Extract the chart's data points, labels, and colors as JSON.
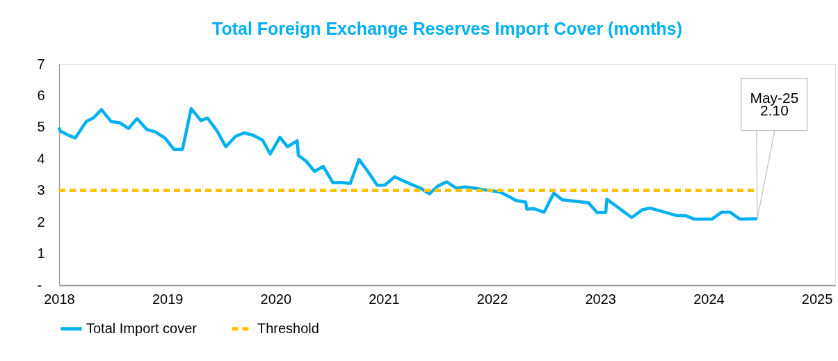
{
  "chart_data": {
    "type": "line",
    "title": "Total Foreign Exchange Reserves Import Cover (months)",
    "xlim": [
      2018,
      2025.17
    ],
    "xticks": [
      2018,
      2019,
      2020,
      2021,
      2022,
      2023,
      2024,
      2025
    ],
    "ylim": [
      0,
      7
    ],
    "yticks": [
      {
        "value": 0,
        "label": "-"
      },
      1,
      2,
      3,
      4,
      5,
      6,
      7
    ],
    "grid": false,
    "legend": "bottom",
    "marker": "none",
    "series": [
      {
        "name": "Total Import cover",
        "color": "#00b0f0",
        "line_style": "solid",
        "x": [
          2018.0,
          2018.01,
          2018.09,
          2018.15,
          2018.25,
          2018.32,
          2018.39,
          2018.48,
          2018.56,
          2018.64,
          2018.72,
          2018.81,
          2018.89,
          2018.98,
          2019.06,
          2019.14,
          2019.22,
          2019.31,
          2019.37,
          2019.46,
          2019.54,
          2019.63,
          2019.71,
          2019.79,
          2019.88,
          2019.95,
          2020.04,
          2020.11,
          2020.2,
          2020.21,
          2020.28,
          2020.36,
          2020.44,
          2020.53,
          2020.6,
          2020.69,
          2020.77,
          2020.85,
          2020.94,
          2021.01,
          2021.1,
          2021.18,
          2021.27,
          2021.34,
          2021.42,
          2021.5,
          2021.58,
          2021.67,
          2021.75,
          2021.84,
          2021.92,
          2022.0,
          2022.08,
          2022.17,
          2022.22,
          2022.31,
          2022.32,
          2022.39,
          2022.48,
          2022.57,
          2022.65,
          2022.89,
          2022.97,
          2023.05,
          2023.06,
          2023.29,
          2023.39,
          2023.46,
          2023.71,
          2023.79,
          2023.87,
          2024.03,
          2024.12,
          2024.2,
          2024.29,
          2024.45
        ],
        "values": [
          4.99,
          4.88,
          4.74,
          4.66,
          5.18,
          5.3,
          5.56,
          5.18,
          5.14,
          4.96,
          5.27,
          4.93,
          4.85,
          4.65,
          4.3,
          4.3,
          5.59,
          5.21,
          5.29,
          4.88,
          4.38,
          4.71,
          4.82,
          4.75,
          4.59,
          4.15,
          4.68,
          4.38,
          4.57,
          4.11,
          3.93,
          3.6,
          3.76,
          3.24,
          3.25,
          3.22,
          3.98,
          3.61,
          3.16,
          3.17,
          3.43,
          3.3,
          3.17,
          3.07,
          2.89,
          3.14,
          3.27,
          3.07,
          3.11,
          3.07,
          3.02,
          2.99,
          2.94,
          2.78,
          2.68,
          2.63,
          2.41,
          2.42,
          2.31,
          2.91,
          2.7,
          2.61,
          2.3,
          2.3,
          2.72,
          2.14,
          2.39,
          2.44,
          2.2,
          2.2,
          2.09,
          2.09,
          2.31,
          2.31,
          2.09,
          2.1
        ]
      },
      {
        "name": "Threshold",
        "color": "#ffc000",
        "line_style": "dashed",
        "x": [
          2018.0,
          2024.43
        ],
        "values": [
          3,
          3
        ]
      }
    ],
    "annotations": [
      {
        "text": "May-25\n2.10",
        "x": 2024.45,
        "y": 2.1
      }
    ]
  }
}
